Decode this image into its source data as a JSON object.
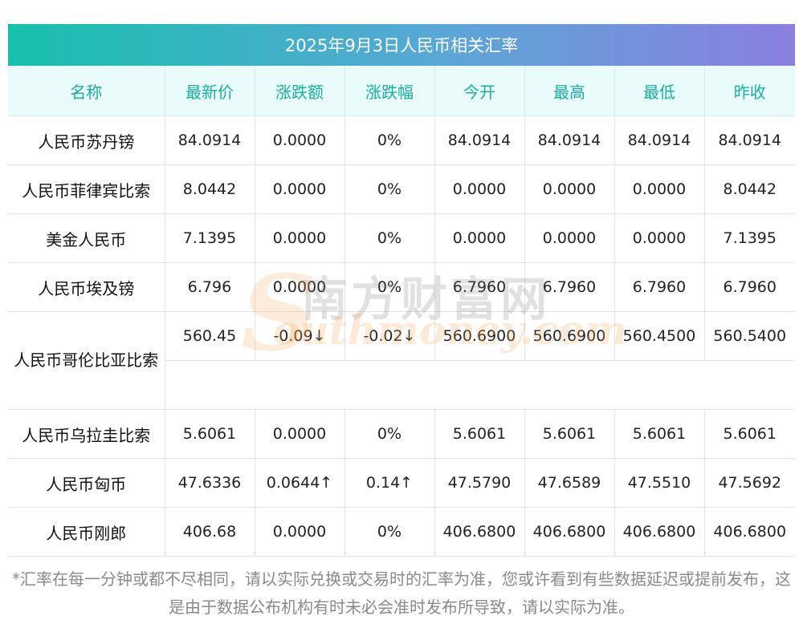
{
  "title": "2025年9月3日人民币相关汇率",
  "columns": [
    "名称",
    "最新价",
    "涨跌额",
    "涨跌幅",
    "今开",
    "最高",
    "最低",
    "昨收"
  ],
  "rows": [
    {
      "name": "人民币苏丹镑",
      "latest": "84.0914",
      "change": "0.0000",
      "pct": "0%",
      "open": "84.0914",
      "high": "84.0914",
      "low": "84.0914",
      "prev": "84.0914"
    },
    {
      "name": "人民币菲律宾比索",
      "latest": "8.0442",
      "change": "0.0000",
      "pct": "0%",
      "open": "0.0000",
      "high": "0.0000",
      "low": "0.0000",
      "prev": "8.0442"
    },
    {
      "name": "美金人民币",
      "latest": "7.1395",
      "change": "0.0000",
      "pct": "0%",
      "open": "0.0000",
      "high": "0.0000",
      "low": "0.0000",
      "prev": "7.1395"
    },
    {
      "name": "人民币埃及镑",
      "latest": "6.796",
      "change": "0.0000",
      "pct": "0%",
      "open": "6.7960",
      "high": "6.7960",
      "low": "6.7960",
      "prev": "6.7960"
    },
    {
      "name": "人民币哥伦比亚比索",
      "latest": "560.45",
      "change": "-0.09↓",
      "pct": "-0.02↓",
      "open": "560.6900",
      "high": "560.6900",
      "low": "560.4500",
      "prev": "560.5400"
    },
    {
      "name": "人民币乌拉圭比索",
      "latest": "5.6061",
      "change": "0.0000",
      "pct": "0%",
      "open": "5.6061",
      "high": "5.6061",
      "low": "5.6061",
      "prev": "5.6061"
    },
    {
      "name": "人民币匈币",
      "latest": "47.6336",
      "change": "0.0644↑",
      "pct": "0.14↑",
      "open": "47.5790",
      "high": "47.6589",
      "low": "47.5510",
      "prev": "47.5692"
    },
    {
      "name": "人民币刚郎",
      "latest": "406.68",
      "change": "0.0000",
      "pct": "0%",
      "open": "406.6800",
      "high": "406.6800",
      "low": "406.6800",
      "prev": "406.6800"
    }
  ],
  "watermark": {
    "cn": "南方财富网",
    "en": "outhmoney.com",
    "s": "S"
  },
  "note": "*汇率在每一分钟或都不尽相同，请以实际兑换或交易时的汇率为准，您或许看到有些数据延迟或提前发布，这是由于数据公布机构有时未必会准时发布所导致，请以实际为准。",
  "colors": {
    "up": "#e60012",
    "down": "#1a8a1a",
    "header_text": "#17b0a0",
    "title_gradient_start": "#17c0ad",
    "title_gradient_end": "#8b7fe0"
  }
}
